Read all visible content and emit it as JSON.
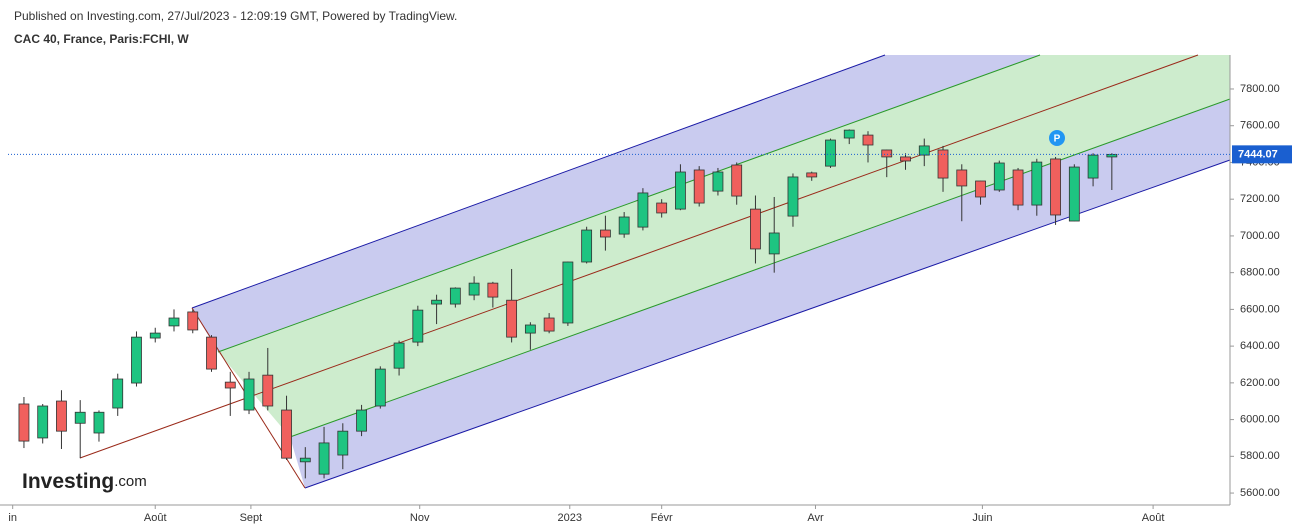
{
  "header": {
    "published": "Published on Investing.com, 27/Jul/2023 - 12:09:19 GMT, Powered by TradingView.",
    "symbol": "CAC 40, France, Paris:FCHI, W"
  },
  "logo": {
    "brand": "Investing",
    "suffix": ".com"
  },
  "marker": "P",
  "chart_data": {
    "type": "candlestick",
    "up_color": "#1ec481",
    "down_color": "#f0605d",
    "xlim": [
      -0.85,
      64.3
    ],
    "xticks": [
      {
        "value": -0.6,
        "label": "in"
      },
      {
        "value": 7,
        "label": "Août"
      },
      {
        "value": 12.1,
        "label": "Sept"
      },
      {
        "value": 21.1,
        "label": "Nov"
      },
      {
        "value": 29.1,
        "label": "2023"
      },
      {
        "value": 34,
        "label": "Févr"
      },
      {
        "value": 42.2,
        "label": "Avr"
      },
      {
        "value": 51.1,
        "label": "Juin"
      },
      {
        "value": 60.2,
        "label": "Août"
      }
    ],
    "ylim": [
      5535,
      7985
    ],
    "yticks": [
      {
        "value": 5600,
        "label": "5600.00"
      },
      {
        "value": 5800,
        "label": "5800.00"
      },
      {
        "value": 6000,
        "label": "6000.00"
      },
      {
        "value": 6200,
        "label": "6200.00"
      },
      {
        "value": 6400,
        "label": "6400.00"
      },
      {
        "value": 6600,
        "label": "6600.00"
      },
      {
        "value": 6800,
        "label": "6800.00"
      },
      {
        "value": 7000,
        "label": "7000.00"
      },
      {
        "value": 7200,
        "label": "7200.00"
      },
      {
        "value": 7400,
        "label": "7400.00"
      },
      {
        "value": 7600,
        "label": "7600.00"
      },
      {
        "value": 7800,
        "label": "7800.00"
      }
    ],
    "last_price": 7444.07,
    "open": [
      6085,
      5900,
      6101,
      5980,
      5927,
      6063,
      6199,
      6444,
      6510,
      6586,
      6449,
      6204,
      6052,
      6242,
      6052,
      5770,
      5703,
      5807,
      5937,
      6074,
      6280,
      6422,
      6629,
      6629,
      6678,
      6743,
      6650,
      6471,
      6553,
      6526,
      6858,
      7032,
      7010,
      7048,
      7179,
      7146,
      7359,
      7244,
      7386,
      7146,
      6902,
      7108,
      7343,
      7380,
      7533,
      7549,
      7468,
      7430,
      7440,
      7468,
      7359,
      7299,
      7250,
      7359,
      7168,
      7419,
      7081,
      7315,
      7430
    ],
    "high": [
      6123,
      6085,
      6160,
      6106,
      6050,
      6250,
      6480,
      6500,
      6600,
      6600,
      6460,
      6260,
      6260,
      6390,
      6130,
      5850,
      5960,
      5980,
      6080,
      6290,
      6430,
      6620,
      6680,
      6720,
      6780,
      6750,
      6820,
      6530,
      6580,
      6860,
      7050,
      7110,
      7130,
      7260,
      7200,
      7390,
      7380,
      7370,
      7400,
      7220,
      7212,
      7340,
      7350,
      7530,
      7580,
      7570,
      7470,
      7450,
      7530,
      7490,
      7390,
      7300,
      7410,
      7370,
      7420,
      7430,
      7390,
      7450,
      7450
    ],
    "low": [
      5845,
      5870,
      5840,
      5790,
      5880,
      6020,
      6180,
      6420,
      6480,
      6470,
      6260,
      6020,
      6030,
      6050,
      5780,
      5680,
      5680,
      5730,
      5910,
      6060,
      6240,
      6400,
      6520,
      6610,
      6650,
      6610,
      6420,
      6380,
      6470,
      6510,
      6850,
      6920,
      6990,
      7030,
      7100,
      7140,
      7160,
      7220,
      7170,
      6850,
      6800,
      7050,
      7300,
      7370,
      7500,
      7400,
      7320,
      7360,
      7380,
      7240,
      7080,
      7170,
      7240,
      7140,
      7110,
      7060,
      7080,
      7270,
      7250
    ],
    "close": [
      5883,
      6074,
      5937,
      6040,
      6040,
      6221,
      6449,
      6471,
      6553,
      6488,
      6275,
      6172,
      6221,
      6074,
      5790,
      5790,
      5873,
      5937,
      6052,
      6275,
      6417,
      6596,
      6650,
      6716,
      6743,
      6667,
      6449,
      6515,
      6482,
      6858,
      7032,
      6994,
      7103,
      7234,
      7125,
      7348,
      7179,
      7348,
      7217,
      6929,
      7016,
      7321,
      7321,
      7522,
      7576,
      7495,
      7430,
      7408,
      7490,
      7315,
      7272,
      7212,
      7397,
      7168,
      7402,
      7114,
      7375,
      7440,
      7444
    ]
  }
}
